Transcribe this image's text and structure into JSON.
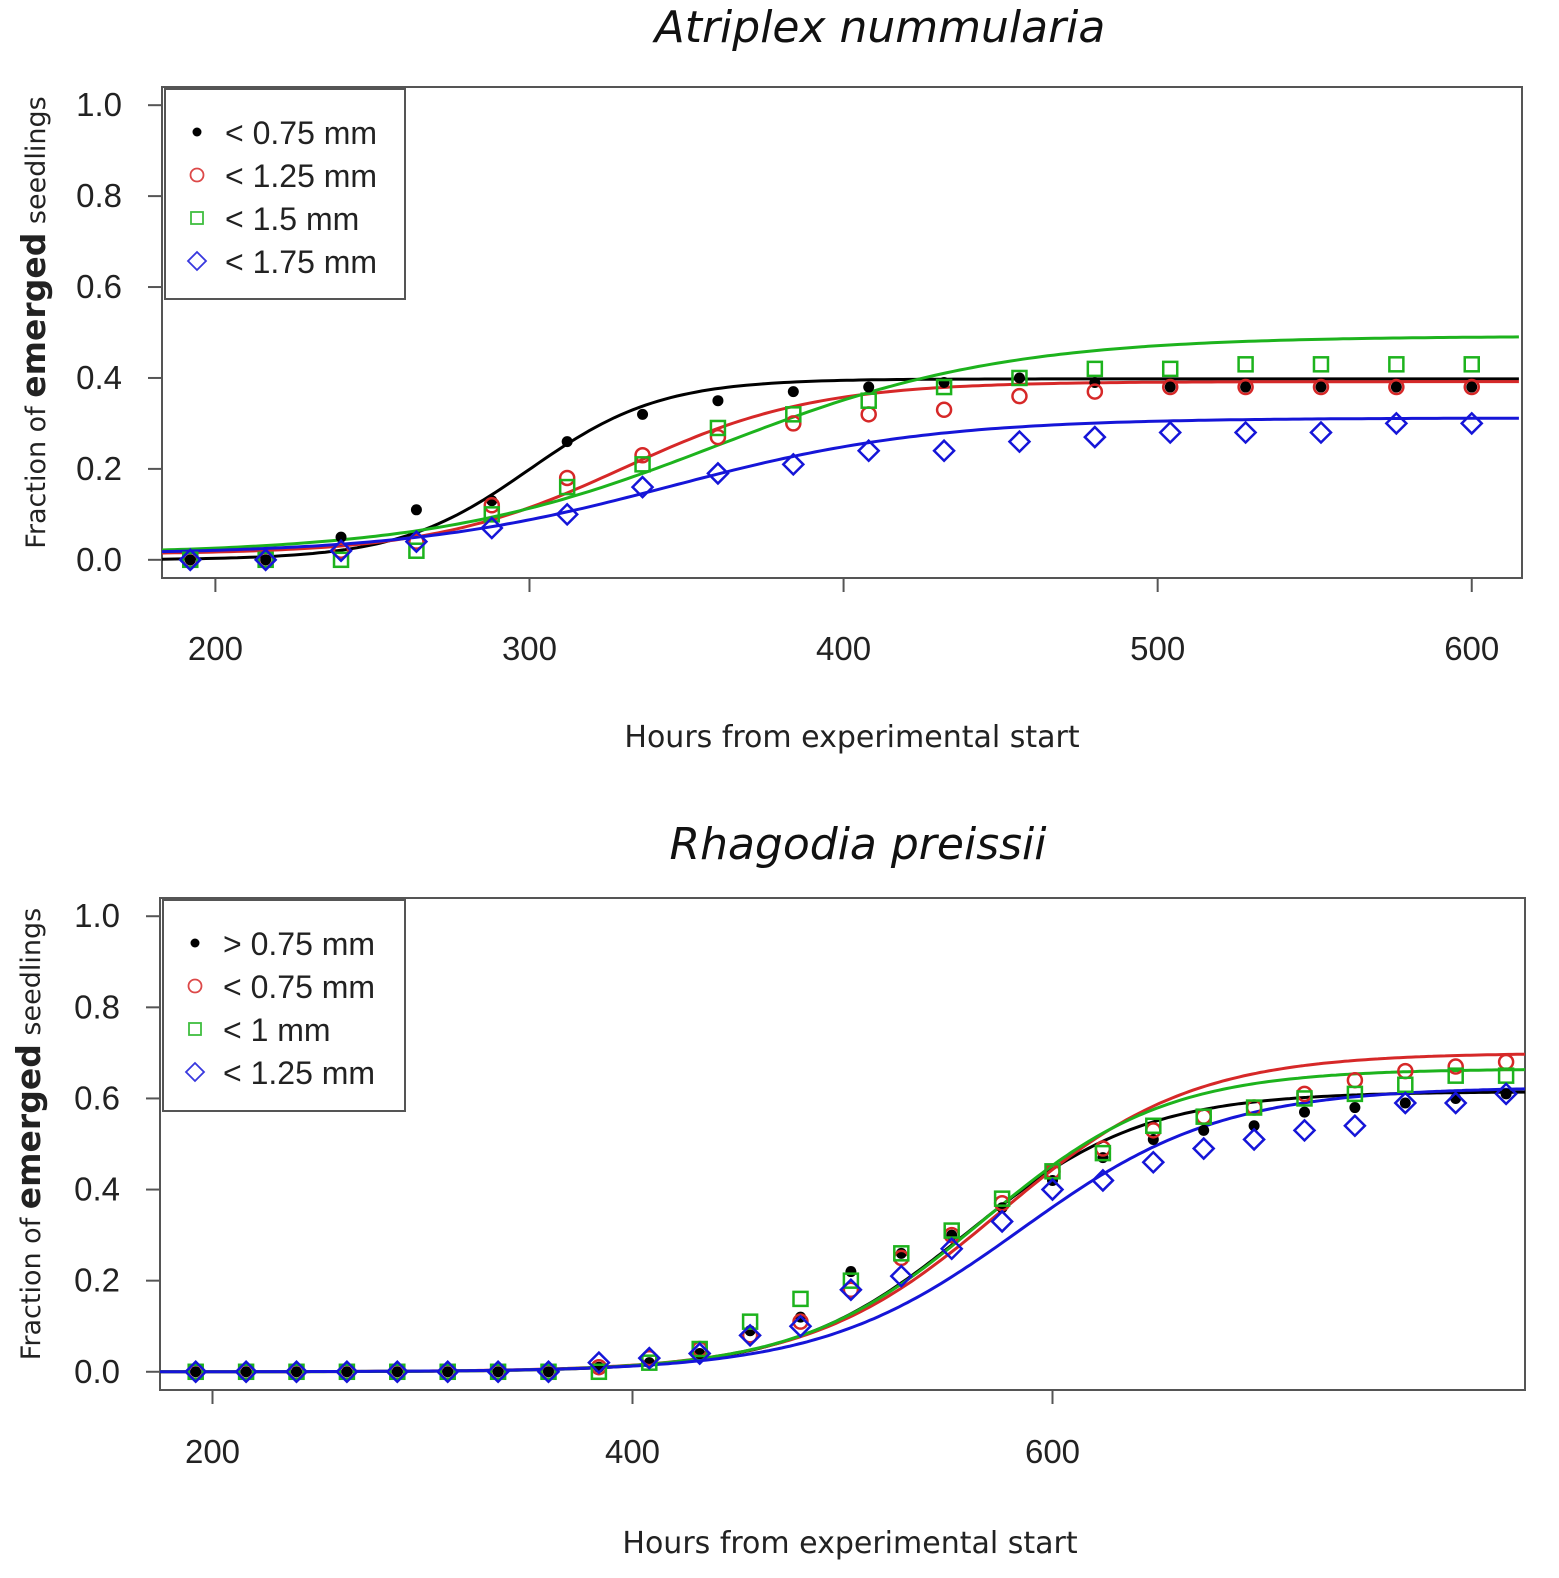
{
  "chart_data": [
    {
      "type": "scatter",
      "title": "Atriplex nummularia",
      "xlabel": "Hours from experimental start",
      "ylabel": {
        "prefix": "Fraction of ",
        "bold": "emerged",
        "suffix": " seedlings"
      },
      "xlim": [
        183,
        616
      ],
      "ylim": [
        -0.04,
        1.04
      ],
      "xticks": [
        200,
        300,
        400,
        500,
        600
      ],
      "yticks": [
        "0.0",
        "0.2",
        "0.4",
        "0.6",
        "0.8",
        "1.0"
      ],
      "legend_position": "top-left",
      "series": [
        {
          "name": "< 0.75 mm",
          "color": "#000000",
          "marker": "dot",
          "x": [
            192,
            216,
            240,
            264,
            288,
            312,
            336,
            360,
            384,
            408,
            432,
            456,
            480,
            504,
            528,
            552,
            576,
            600
          ],
          "y": [
            0.0,
            0.0,
            0.05,
            0.11,
            0.13,
            0.26,
            0.32,
            0.35,
            0.37,
            0.38,
            0.39,
            0.4,
            0.39,
            0.38,
            0.38,
            0.38,
            0.38,
            0.38
          ],
          "fit": {
            "L": 0.398,
            "k": 0.048,
            "x0": 300,
            "b": 0.0
          }
        },
        {
          "name": "< 1.25 mm",
          "color": "#d62828",
          "marker": "circle",
          "x": [
            192,
            216,
            240,
            264,
            288,
            312,
            336,
            360,
            384,
            408,
            432,
            456,
            480,
            504,
            528,
            552,
            576,
            600
          ],
          "y": [
            0.0,
            0.0,
            0.02,
            0.04,
            0.12,
            0.18,
            0.23,
            0.27,
            0.3,
            0.32,
            0.33,
            0.36,
            0.37,
            0.38,
            0.38,
            0.38,
            0.38,
            0.38
          ],
          "fit": {
            "L": 0.38,
            "k": 0.033,
            "x0": 330,
            "b": 0.012
          }
        },
        {
          "name": "< 1.5 mm",
          "color": "#1db31d",
          "marker": "square",
          "x": [
            192,
            216,
            240,
            264,
            288,
            312,
            336,
            360,
            384,
            408,
            432,
            456,
            480,
            504,
            528,
            552,
            576,
            600
          ],
          "y": [
            0.0,
            0.0,
            0.0,
            0.02,
            0.1,
            0.16,
            0.21,
            0.29,
            0.32,
            0.35,
            0.38,
            0.4,
            0.42,
            0.42,
            0.43,
            0.43,
            0.43,
            0.43
          ],
          "fit": {
            "L": 0.48,
            "k": 0.022,
            "x0": 360,
            "b": 0.012
          }
        },
        {
          "name": "< 1.75 mm",
          "color": "#1515d8",
          "marker": "diamond",
          "x": [
            192,
            216,
            240,
            264,
            288,
            312,
            336,
            360,
            384,
            408,
            432,
            456,
            480,
            504,
            528,
            552,
            576,
            600
          ],
          "y": [
            0.0,
            0.0,
            0.02,
            0.04,
            0.07,
            0.1,
            0.16,
            0.19,
            0.21,
            0.24,
            0.24,
            0.26,
            0.27,
            0.28,
            0.28,
            0.28,
            0.3,
            0.3
          ],
          "fit": {
            "L": 0.3,
            "k": 0.024,
            "x0": 345,
            "b": 0.012
          }
        }
      ]
    },
    {
      "type": "scatter",
      "title": "Rhagodia preissii",
      "xlabel": "Hours from experimental start",
      "ylabel": {
        "prefix": "Fraction of ",
        "bold": "emerged",
        "suffix": " seedlings"
      },
      "xlim": [
        175,
        825
      ],
      "ylim": [
        -0.04,
        1.04
      ],
      "xticks": [
        200,
        400,
        600
      ],
      "yticks": [
        "0.0",
        "0.2",
        "0.4",
        "0.6",
        "0.8",
        "1.0"
      ],
      "legend_position": "top-left",
      "series": [
        {
          "name": "> 0.75 mm",
          "color": "#000000",
          "marker": "dot",
          "x": [
            192,
            216,
            240,
            264,
            288,
            312,
            336,
            360,
            384,
            408,
            432,
            456,
            480,
            504,
            528,
            552,
            576,
            600,
            624,
            648,
            672,
            696,
            720,
            744,
            768,
            792,
            816
          ],
          "y": [
            0.0,
            0.0,
            0.0,
            0.0,
            0.0,
            0.0,
            0.0,
            0.0,
            0.01,
            0.02,
            0.04,
            0.09,
            0.12,
            0.22,
            0.26,
            0.3,
            0.36,
            0.42,
            0.47,
            0.51,
            0.53,
            0.54,
            0.57,
            0.58,
            0.59,
            0.6,
            0.61
          ],
          "fit": {
            "L": 0.615,
            "k": 0.024,
            "x0": 560,
            "b": 0.0
          }
        },
        {
          "name": "< 0.75 mm",
          "color": "#d62828",
          "marker": "circle",
          "x": [
            192,
            216,
            240,
            264,
            288,
            312,
            336,
            360,
            384,
            408,
            432,
            456,
            480,
            504,
            528,
            552,
            576,
            600,
            624,
            648,
            672,
            696,
            720,
            744,
            768,
            792,
            816
          ],
          "y": [
            0.0,
            0.0,
            0.0,
            0.0,
            0.0,
            0.0,
            0.0,
            0.0,
            0.01,
            0.03,
            0.05,
            0.08,
            0.11,
            0.18,
            0.25,
            0.3,
            0.37,
            0.44,
            0.49,
            0.53,
            0.56,
            0.58,
            0.61,
            0.64,
            0.66,
            0.67,
            0.68
          ],
          "fit": {
            "L": 0.7,
            "k": 0.022,
            "x0": 575,
            "b": 0.0
          }
        },
        {
          "name": "< 1 mm",
          "color": "#1db31d",
          "marker": "square",
          "x": [
            192,
            216,
            240,
            264,
            288,
            312,
            336,
            360,
            384,
            408,
            432,
            456,
            480,
            504,
            528,
            552,
            576,
            600,
            624,
            648,
            672,
            696,
            720,
            744,
            768,
            792,
            816
          ],
          "y": [
            0.0,
            0.0,
            0.0,
            0.0,
            0.0,
            0.0,
            0.0,
            0.0,
            0.0,
            0.02,
            0.05,
            0.11,
            0.16,
            0.2,
            0.26,
            0.31,
            0.38,
            0.44,
            0.48,
            0.54,
            0.56,
            0.58,
            0.6,
            0.61,
            0.63,
            0.65,
            0.65
          ],
          "fit": {
            "L": 0.665,
            "k": 0.023,
            "x0": 567,
            "b": 0.0
          }
        },
        {
          "name": "< 1.25 mm",
          "color": "#1515d8",
          "marker": "diamond",
          "x": [
            192,
            216,
            240,
            264,
            288,
            312,
            336,
            360,
            384,
            408,
            432,
            456,
            480,
            504,
            528,
            552,
            576,
            600,
            624,
            648,
            672,
            696,
            720,
            744,
            768,
            792,
            816
          ],
          "y": [
            0.0,
            0.0,
            0.0,
            0.0,
            0.0,
            0.0,
            0.0,
            0.0,
            0.02,
            0.03,
            0.04,
            0.08,
            0.1,
            0.18,
            0.21,
            0.27,
            0.33,
            0.4,
            0.42,
            0.46,
            0.49,
            0.51,
            0.53,
            0.54,
            0.59,
            0.59,
            0.61
          ],
          "fit": {
            "L": 0.625,
            "k": 0.021,
            "x0": 585,
            "b": 0.0
          }
        }
      ]
    }
  ]
}
